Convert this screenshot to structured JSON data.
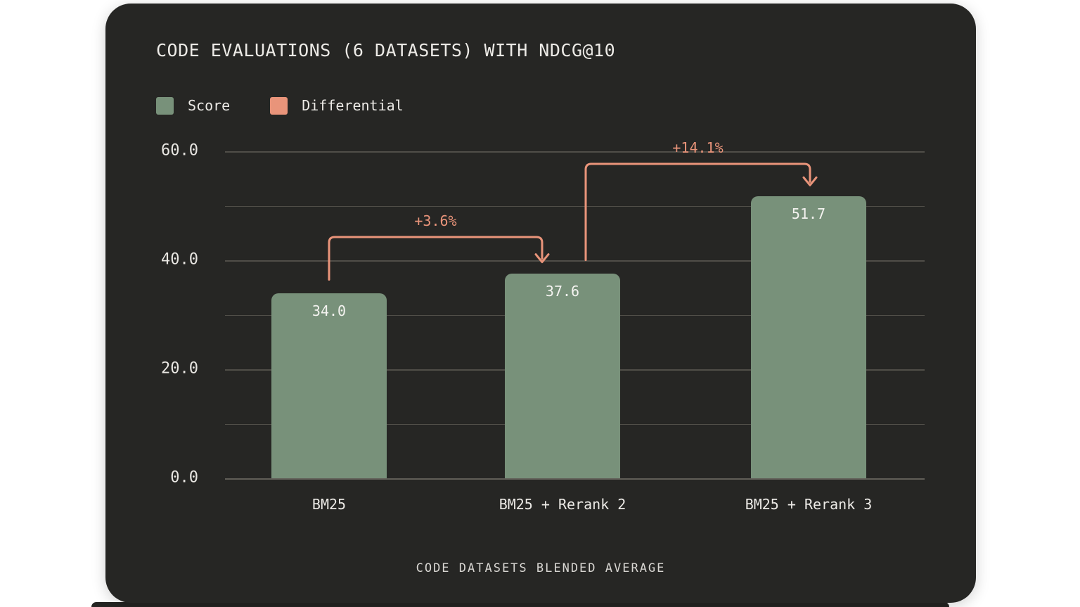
{
  "card": {
    "background": "#262624",
    "title": "CODE EVALUATIONS (6 DATASETS) WITH NDCG@10"
  },
  "chart_data": {
    "type": "bar",
    "title": "CODE EVALUATIONS (6 DATASETS) WITH NDCG@10",
    "xlabel": "CODE DATASETS BLENDED AVERAGE",
    "ylabel": "",
    "categories": [
      "BM25",
      "BM25 + Rerank 2",
      "BM25 + Rerank 3"
    ],
    "values": [
      34.0,
      37.6,
      51.7
    ],
    "value_labels": [
      "34.0",
      "37.6",
      "51.7"
    ],
    "ylim": [
      0,
      60
    ],
    "grid": true,
    "legend_position": "top-left",
    "yticks": [
      {
        "v": 0,
        "label": "0.0"
      },
      {
        "v": 10,
        "label": ""
      },
      {
        "v": 20,
        "label": "20.0"
      },
      {
        "v": 30,
        "label": ""
      },
      {
        "v": 40,
        "label": "40.0"
      },
      {
        "v": 50,
        "label": ""
      },
      {
        "v": 60,
        "label": "60.0"
      }
    ],
    "legend": [
      {
        "label": "Score",
        "color": "#78917A"
      },
      {
        "label": "Differential",
        "color": "#E9947A"
      }
    ],
    "differentials": [
      {
        "label": "+3.6%",
        "from": 0,
        "to": 1
      },
      {
        "label": "+14.1%",
        "from": 1,
        "to": 2
      }
    ],
    "colors": {
      "bar": "#78917A",
      "differential": "#E9947A",
      "grid": "#504E48",
      "axis_text": "#E8E6E2",
      "value_text": "#F4F3F0"
    }
  }
}
